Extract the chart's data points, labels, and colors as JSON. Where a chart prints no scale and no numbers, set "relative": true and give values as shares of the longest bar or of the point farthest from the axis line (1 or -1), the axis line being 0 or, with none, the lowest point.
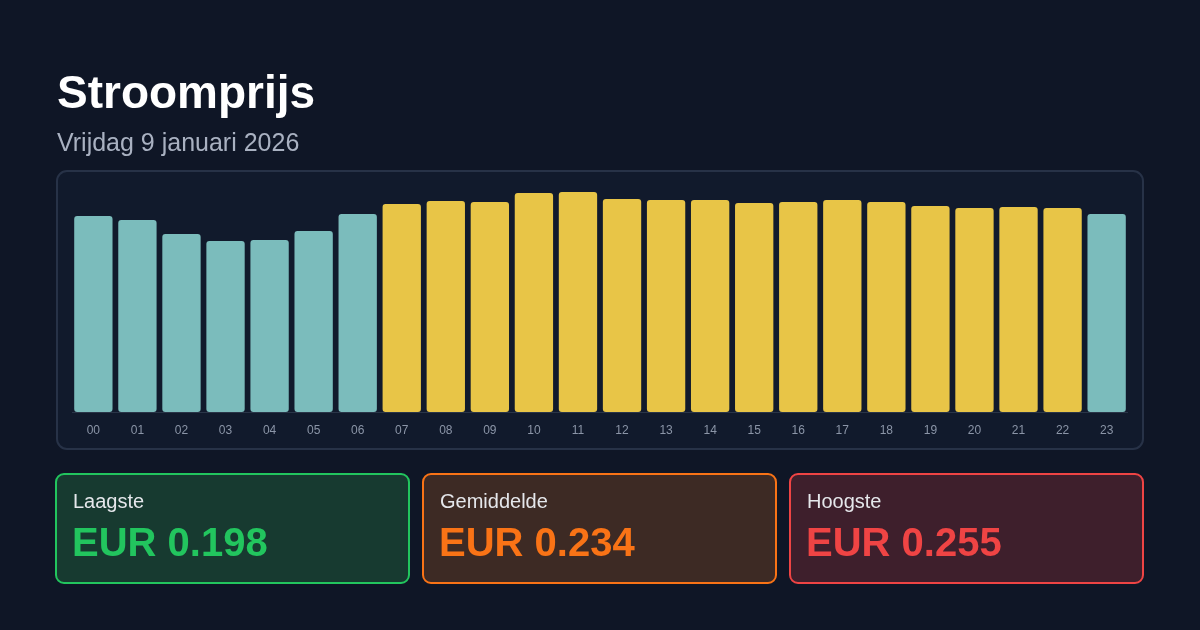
{
  "chart_data": [
    {
      "type": "bar",
      "title": "Stroomprijs",
      "subtitle": "Vrijdag 9 januari 2026",
      "relative": true,
      "categories": [
        "00",
        "01",
        "02",
        "03",
        "04",
        "05",
        "06",
        "07",
        "08",
        "09",
        "10",
        "11",
        "12",
        "13",
        "14",
        "15",
        "16",
        "17",
        "18",
        "19",
        "20",
        "21",
        "22",
        "23"
      ],
      "values": [
        0.891,
        0.873,
        0.809,
        0.777,
        0.782,
        0.823,
        0.9,
        0.945,
        0.959,
        0.955,
        0.995,
        1,
        0.968,
        0.964,
        0.964,
        0.95,
        0.955,
        0.964,
        0.955,
        0.936,
        0.927,
        0.932,
        0.927,
        0.9
      ],
      "colors": [
        "#7bbcbc",
        "#7bbcbc",
        "#7bbcbc",
        "#7bbcbc",
        "#7bbcbc",
        "#7bbcbc",
        "#7bbcbc",
        "#e8c547",
        "#e8c547",
        "#e8c547",
        "#e8c547",
        "#e8c547",
        "#e8c547",
        "#e8c547",
        "#e8c547",
        "#e8c547",
        "#e8c547",
        "#e8c547",
        "#e8c547",
        "#e8c547",
        "#e8c547",
        "#e8c547",
        "#e8c547",
        "#7bbcbc"
      ]
    },
    {
      "type": "other",
      "title": "Laagste",
      "annotations": [
        "EUR 0.198"
      ]
    },
    {
      "type": "other",
      "title": "Gemiddelde",
      "annotations": [
        "EUR 0.234"
      ]
    },
    {
      "type": "other",
      "title": "Hoogste",
      "annotations": [
        "EUR 0.255"
      ]
    }
  ]
}
